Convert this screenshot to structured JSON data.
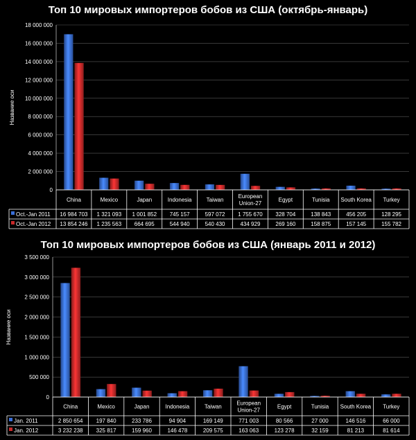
{
  "chart_data": [
    {
      "type": "bar",
      "title": "Топ 10 мировых импортеров бобов из США (октябрь-январь)",
      "ylabel": "Название оси",
      "xlabel": "",
      "ylim": [
        0,
        18000000
      ],
      "ytick_step": 2000000,
      "ytick_labels": [
        "0",
        "2 000 000",
        "4 000 000",
        "6 000 000",
        "8 000 000",
        "10 000 000",
        "12 000 000",
        "14 000 000",
        "16 000 000",
        "18 000 000"
      ],
      "categories": [
        "China",
        "Mexico",
        "Japan",
        "Indonesia",
        "Taiwan",
        "European Union-27",
        "Egypt",
        "Tunisia",
        "South Korea",
        "Turkey"
      ],
      "series": [
        {
          "name": "Oct.-Jan 2011",
          "color": "#3a6fd8",
          "values": [
            16984703,
            1321093,
            1001852,
            745157,
            597072,
            1755670,
            328704,
            138843,
            456205,
            128295
          ],
          "labels": [
            "16 984 703",
            "1 321 093",
            "1 001 852",
            "745 157",
            "597 072",
            "1 755 670",
            "328 704",
            "138 843",
            "456 205",
            "128 295"
          ]
        },
        {
          "name": "Oct.-Jan 2012",
          "color": "#c92a2a",
          "values": [
            13854246,
            1235563,
            664695,
            544940,
            540430,
            434929,
            269160,
            158875,
            157145,
            155782
          ],
          "labels": [
            "13 854 246",
            "1 235 563",
            "664 695",
            "544 940",
            "540 430",
            "434 929",
            "269 160",
            "158 875",
            "157 145",
            "155 782"
          ]
        }
      ]
    },
    {
      "type": "bar",
      "title": "Топ 10 мировых импортеров бобов из США (январь 2011 и 2012)",
      "ylabel": "Название оси",
      "xlabel": "",
      "ylim": [
        0,
        3500000
      ],
      "ytick_step": 500000,
      "ytick_labels": [
        "0",
        "500 000",
        "1 000 000",
        "1 500 000",
        "2 000 000",
        "2 500 000",
        "3 000 000",
        "3 500 000"
      ],
      "categories": [
        "China",
        "Mexico",
        "Japan",
        "Indonesia",
        "Taiwan",
        "European Union-27",
        "Egypt",
        "Tunisia",
        "South Korea",
        "Turkey"
      ],
      "series": [
        {
          "name": "Jan. 2011",
          "color": "#3a6fd8",
          "values": [
            2850654,
            197840,
            233786,
            94904,
            169149,
            771003,
            80566,
            27000,
            146516,
            66000
          ],
          "labels": [
            "2 850 654",
            "197 840",
            "233 786",
            "94 904",
            "169 149",
            "771 003",
            "80 566",
            "27 000",
            "146 516",
            "66 000"
          ]
        },
        {
          "name": "Jan. 2012",
          "color": "#c92a2a",
          "values": [
            3232238,
            325817,
            159960,
            146478,
            209575,
            163063,
            123278,
            32159,
            81213,
            81614
          ],
          "labels": [
            "3 232 238",
            "325 817",
            "159 960",
            "146 478",
            "209 575",
            "163 063",
            "123 278",
            "32 159",
            "81 213",
            "81 614"
          ]
        }
      ]
    }
  ]
}
